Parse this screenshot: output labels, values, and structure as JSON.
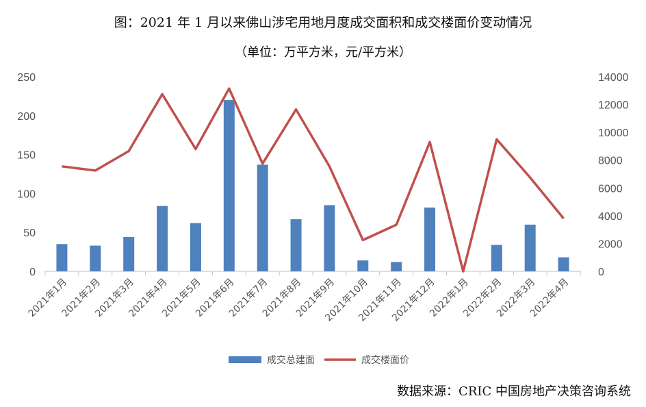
{
  "chart_data": {
    "type": "bar",
    "title": "图：2021 年 1 月以来佛山涉宅用地月度成交面积和成交楼面价变动情况",
    "subtitle": "（单位：万平方米，元/平方米）",
    "categories": [
      "2021年1月",
      "2021年2月",
      "2021年3月",
      "2021年4月",
      "2021年5月",
      "2021年6月",
      "2021年7月",
      "2021年8月",
      "2021年9月",
      "2021年10月",
      "2021年11月",
      "2021年12月",
      "2022年1月",
      "2022年2月",
      "2022年3月",
      "2022年4月"
    ],
    "y_left": {
      "min": 0,
      "max": 250,
      "ticks": [
        "0",
        "50",
        "100",
        "150",
        "200",
        "250"
      ]
    },
    "y_right": {
      "min": 0,
      "max": 14000,
      "ticks": [
        "0",
        "2000",
        "4000",
        "6000",
        "8000",
        "10000",
        "12000",
        "14000"
      ]
    },
    "series": [
      {
        "name": "成交总建面",
        "type": "bar",
        "axis": "left",
        "color": "#4f81bd",
        "values": [
          35,
          33,
          44,
          84,
          62,
          220,
          137,
          67,
          85,
          14,
          12,
          82,
          0,
          34,
          60,
          18
        ]
      },
      {
        "name": "成交楼面价",
        "type": "line",
        "axis": "right",
        "color": "#c0504d",
        "values": [
          7550,
          7250,
          8650,
          12750,
          8800,
          13150,
          7750,
          11650,
          7550,
          2250,
          3350,
          9300,
          0,
          9500,
          6750,
          3800
        ]
      }
    ],
    "grid": false,
    "legend": "bottom"
  },
  "source": "数据来源：CRIC 中国房地产决策咨询系统"
}
